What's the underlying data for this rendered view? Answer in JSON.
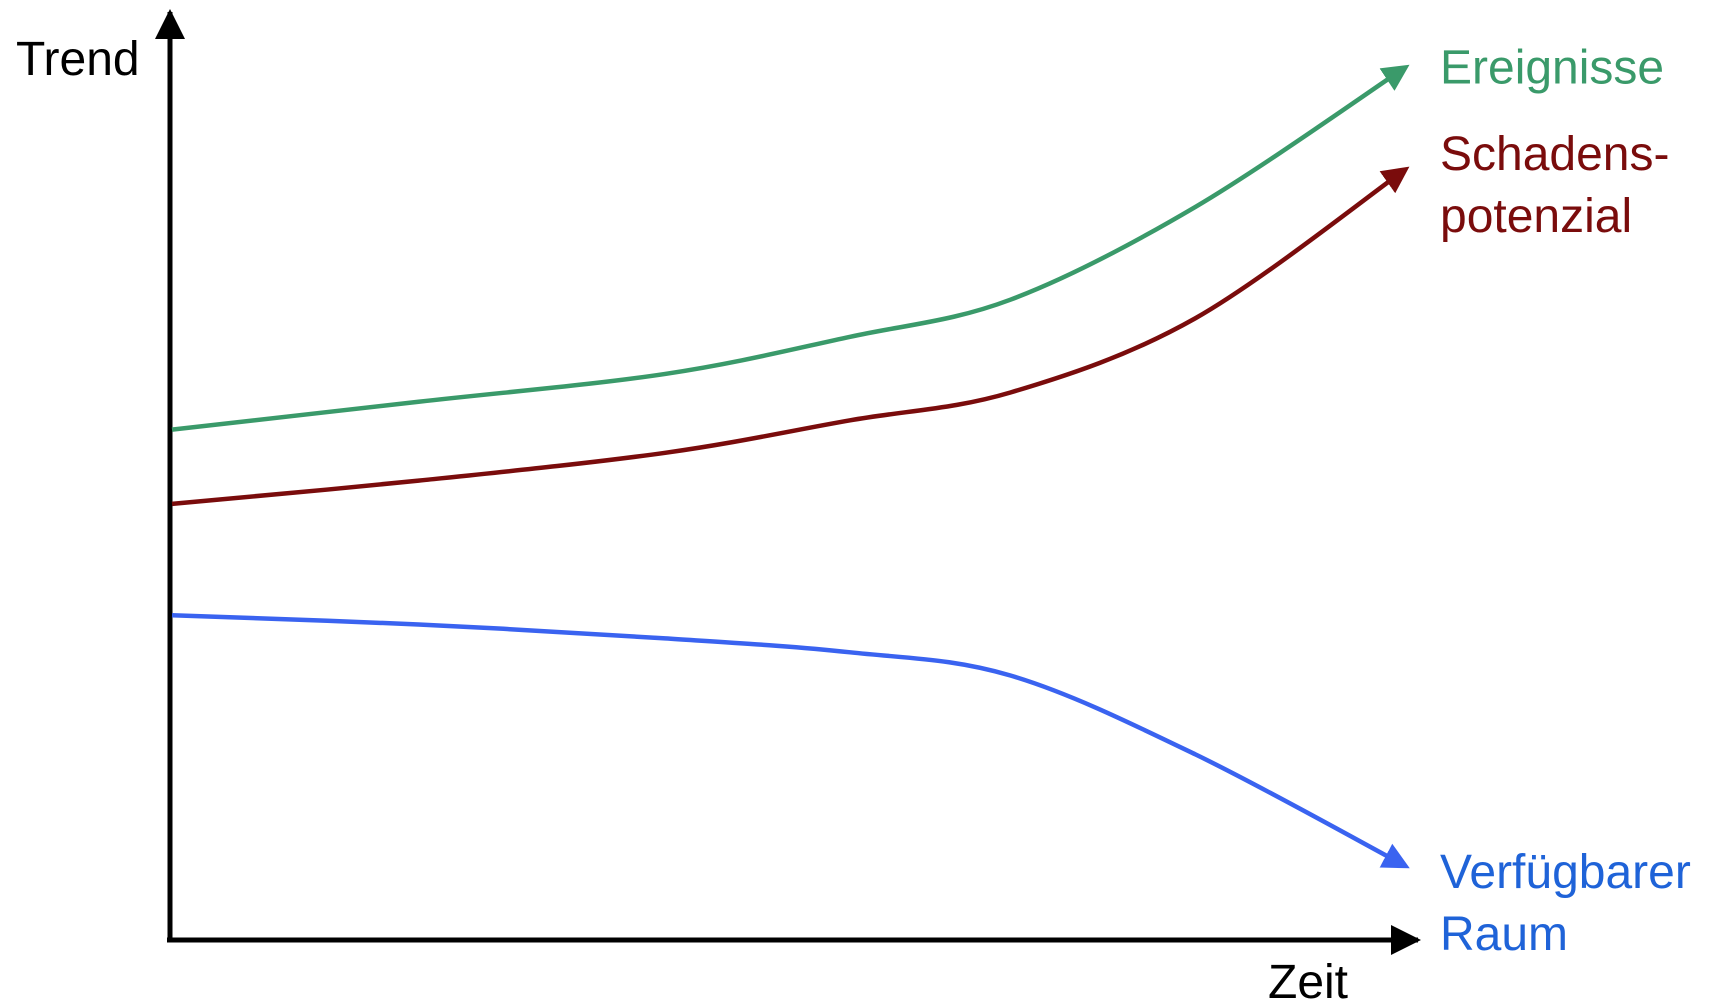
{
  "chart_data": {
    "type": "line",
    "title": "",
    "xlabel": "Zeit",
    "ylabel": "Trend",
    "grid": false,
    "legend": "right of line ends",
    "xlim": [
      0,
      100
    ],
    "ylim": [
      0,
      100
    ],
    "series": [
      {
        "name": "Ereignisse",
        "name_lines": [
          "Ereignisse"
        ],
        "color": "#3a9a6a",
        "points": [
          [
            0,
            55
          ],
          [
            20,
            58
          ],
          [
            40,
            61
          ],
          [
            55,
            65
          ],
          [
            68,
            69
          ],
          [
            83,
            79
          ],
          [
            100,
            94
          ]
        ]
      },
      {
        "name": "Schadens-potenzial",
        "name_lines": [
          "Schadens-",
          "potenzial"
        ],
        "color": "#7a0c0c",
        "points": [
          [
            0,
            47
          ],
          [
            20,
            49.5
          ],
          [
            40,
            52.5
          ],
          [
            55,
            56
          ],
          [
            68,
            59
          ],
          [
            83,
            67
          ],
          [
            100,
            83
          ]
        ]
      },
      {
        "name": "Verfügbarer Raum",
        "name_lines": [
          "Verfügbarer",
          "Raum"
        ],
        "color": "#3a63f0",
        "label_color": "#1f63d8",
        "points": [
          [
            0,
            35
          ],
          [
            20,
            34
          ],
          [
            40,
            32.5
          ],
          [
            55,
            31
          ],
          [
            68,
            28.5
          ],
          [
            83,
            20
          ],
          [
            100,
            8
          ]
        ]
      }
    ]
  }
}
